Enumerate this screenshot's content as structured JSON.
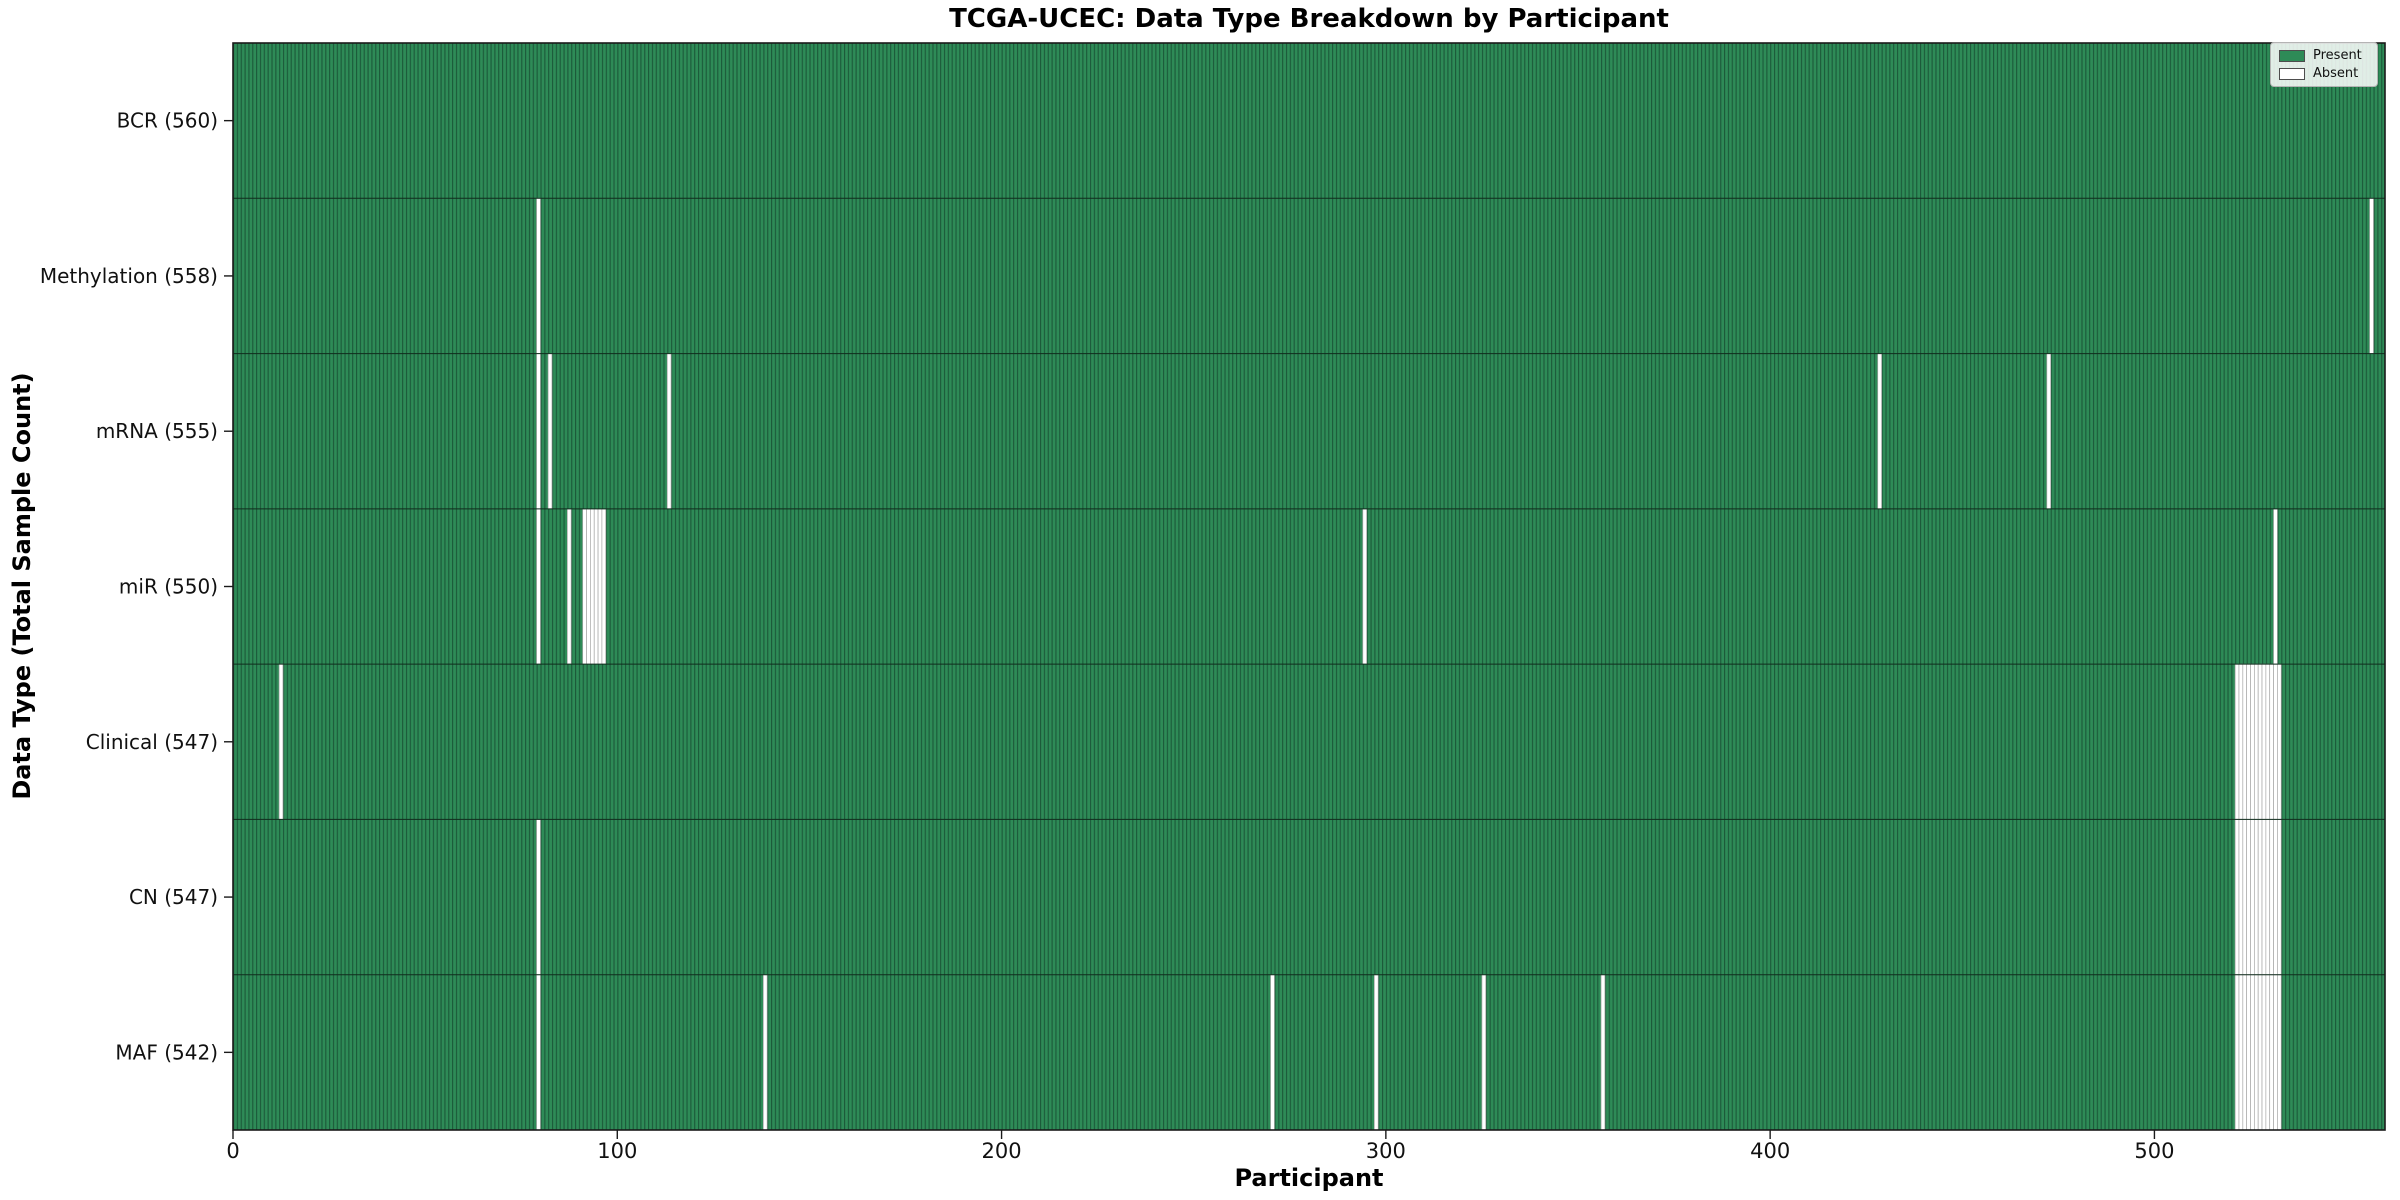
{
  "chart_data": {
    "type": "heatmap",
    "title": "TCGA-UCEC: Data Type Breakdown by Participant",
    "xlabel": "Participant",
    "ylabel": "Data Type (Total Sample Count)",
    "n_participants": 560,
    "x_ticks": [
      0,
      100,
      200,
      300,
      400,
      500
    ],
    "xlim": [
      0,
      560
    ],
    "grid": false,
    "legend_position": "upper right",
    "legend": [
      {
        "label": "Present",
        "color": "#2e8b57"
      },
      {
        "label": "Absent",
        "color": "#ffffff"
      }
    ],
    "colors": {
      "present": "#2e8b57",
      "absent": "#ffffff",
      "bar_edge_on_green": "#1c5a3a",
      "bar_edge_on_white": "#a8a8a8",
      "row_divider": "#102c1d",
      "axis": "#1a1a1a",
      "text": "#111111"
    },
    "rows": [
      {
        "label": "BCR (560)",
        "count": 560,
        "absent": []
      },
      {
        "label": "Methylation (558)",
        "count": 558,
        "absent": [
          79,
          556
        ]
      },
      {
        "label": "mRNA (555)",
        "count": 555,
        "absent": [
          79,
          82,
          113,
          428,
          472
        ]
      },
      {
        "label": "miR (550)",
        "count": 550,
        "absent": [
          79,
          87,
          91,
          92,
          93,
          94,
          95,
          96,
          294,
          531
        ]
      },
      {
        "label": "Clinical (547)",
        "count": 547,
        "absent": [
          12,
          521,
          522,
          523,
          524,
          525,
          526,
          527,
          528,
          529,
          530,
          531,
          532
        ]
      },
      {
        "label": "CN (547)",
        "count": 547,
        "absent": [
          79,
          521,
          522,
          523,
          524,
          525,
          526,
          527,
          528,
          529,
          530,
          531,
          532
        ]
      },
      {
        "label": "MAF (542)",
        "count": 542,
        "absent": [
          79,
          138,
          270,
          297,
          325,
          356,
          521,
          522,
          523,
          524,
          525,
          526,
          527,
          528,
          529,
          530,
          531,
          532
        ]
      }
    ]
  }
}
